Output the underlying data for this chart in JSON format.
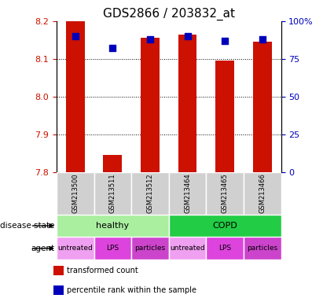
{
  "title": "GDS2866 / 203832_at",
  "samples": [
    "GSM213500",
    "GSM213511",
    "GSM213512",
    "GSM213464",
    "GSM213465",
    "GSM213466"
  ],
  "red_values": [
    8.2,
    7.845,
    8.155,
    8.165,
    8.095,
    8.145
  ],
  "blue_values": [
    90,
    82,
    88,
    90,
    87,
    88
  ],
  "y_min": 7.8,
  "y_max": 8.2,
  "y_ticks": [
    7.8,
    7.9,
    8.0,
    8.1,
    8.2
  ],
  "y2_ticks": [
    0,
    25,
    50,
    75,
    100
  ],
  "disease_state": [
    {
      "label": "healthy",
      "span": [
        0,
        3
      ],
      "color": "#aaeea0"
    },
    {
      "label": "COPD",
      "span": [
        3,
        6
      ],
      "color": "#22cc44"
    }
  ],
  "agent": [
    {
      "label": "untreated",
      "span": [
        0,
        1
      ],
      "color": "#f0a0f0"
    },
    {
      "label": "LPS",
      "span": [
        1,
        2
      ],
      "color": "#dd44dd"
    },
    {
      "label": "particles",
      "span": [
        2,
        3
      ],
      "color": "#cc44cc"
    },
    {
      "label": "untreated",
      "span": [
        3,
        4
      ],
      "color": "#f0a0f0"
    },
    {
      "label": "LPS",
      "span": [
        4,
        5
      ],
      "color": "#dd44dd"
    },
    {
      "label": "particles",
      "span": [
        5,
        6
      ],
      "color": "#cc44cc"
    }
  ],
  "bar_color": "#cc1100",
  "dot_color": "#0000bb",
  "bar_width": 0.5,
  "title_fontsize": 11,
  "tick_fontsize": 8,
  "axis_color_red": "#cc1100",
  "axis_color_blue": "#0000bb",
  "bg_gray": "#d0d0d0",
  "legend_label_red": "transformed count",
  "legend_label_blue": "percentile rank within the sample",
  "disease_state_label": "disease state",
  "agent_label": "agent"
}
